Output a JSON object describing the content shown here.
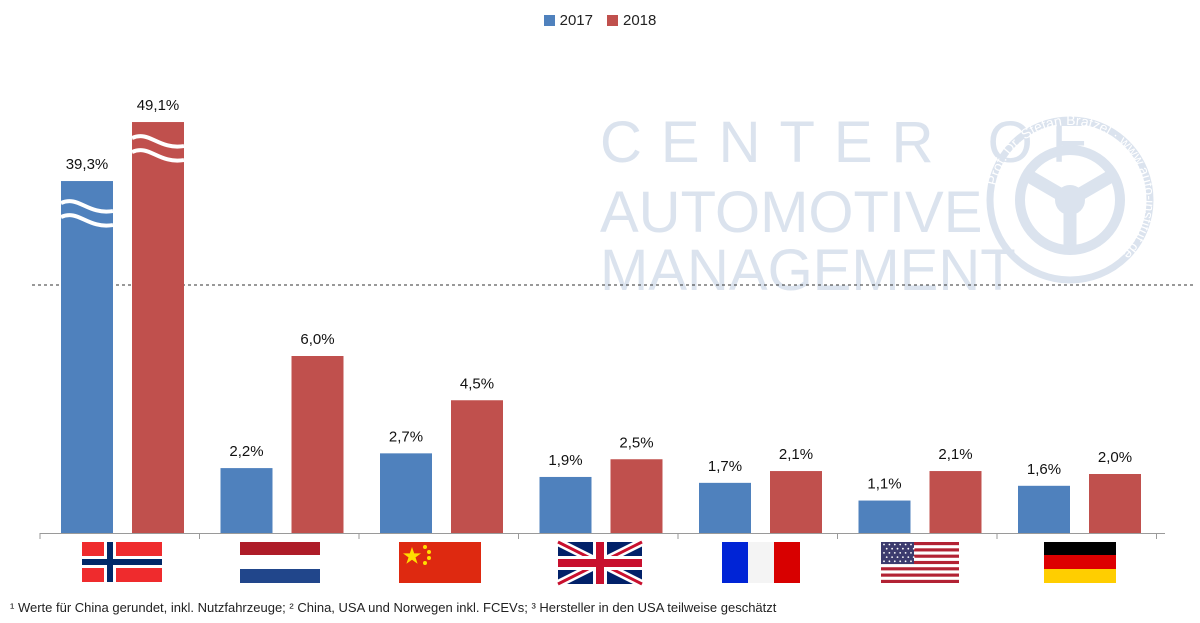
{
  "chart_data": {
    "type": "bar",
    "title": "",
    "xlabel": "",
    "ylabel": "",
    "categories": [
      "Norwegen",
      "Niederlande",
      "China",
      "Großbritannien",
      "Frankreich",
      "USA",
      "Deutschland"
    ],
    "series": [
      {
        "name": "2017",
        "color": "#4f81bd",
        "values": [
          39.3,
          2.2,
          2.7,
          1.9,
          1.7,
          1.1,
          1.6
        ],
        "labels": [
          "39,3%",
          "2,2%",
          "2,7%",
          "1,9%",
          "1,7%",
          "1,1%",
          "1,6%"
        ]
      },
      {
        "name": "2018",
        "color": "#c0504d",
        "values": [
          49.1,
          6.0,
          4.5,
          2.5,
          2.1,
          2.1,
          2.0
        ],
        "labels": [
          "49,1%",
          "6,0%",
          "4,5%",
          "2,5%",
          "2,1%",
          "2,1%",
          "2,0%"
        ]
      }
    ],
    "axis_break": true,
    "grid": false,
    "legend_position": "top-center",
    "flag_icons": [
      "norway-flag-icon",
      "netherlands-flag-icon",
      "china-flag-icon",
      "uk-flag-icon",
      "france-flag-icon",
      "usa-flag-icon",
      "germany-flag-icon"
    ]
  },
  "watermark": {
    "line1": "CENTER OF",
    "line2": "AUTOMOTIVE",
    "line3": "MANAGEMENT",
    "seal_text": "Prof. Dr. Stefan Bratzel · www.auto-institut.de"
  },
  "footnote": "¹ Werte für China gerundet, inkl. Nutzfahrzeuge; ² China, USA und Norwegen inkl. FCEVs; ³ Hersteller in den USA teilweise geschätzt"
}
